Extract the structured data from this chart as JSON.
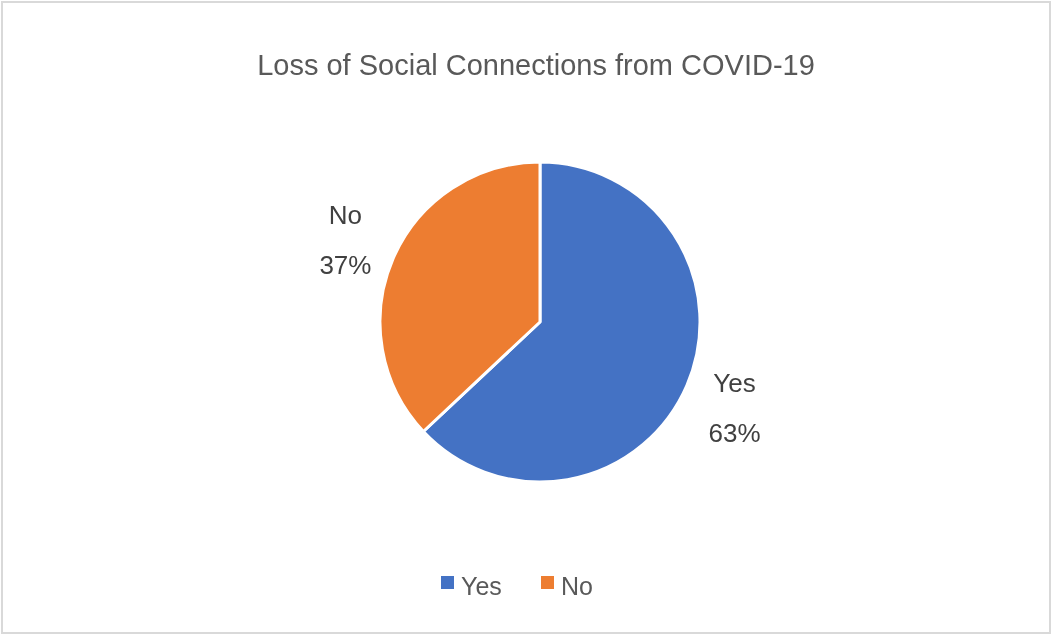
{
  "chart_data": {
    "type": "pie",
    "title": "Loss of Social Connections from COVID-19",
    "categories": [
      "Yes",
      "No"
    ],
    "values": [
      63,
      37
    ],
    "colors": [
      "#4472c4",
      "#ed7d31"
    ],
    "value_labels": [
      "63%",
      "37%"
    ],
    "legend": "bottom"
  }
}
